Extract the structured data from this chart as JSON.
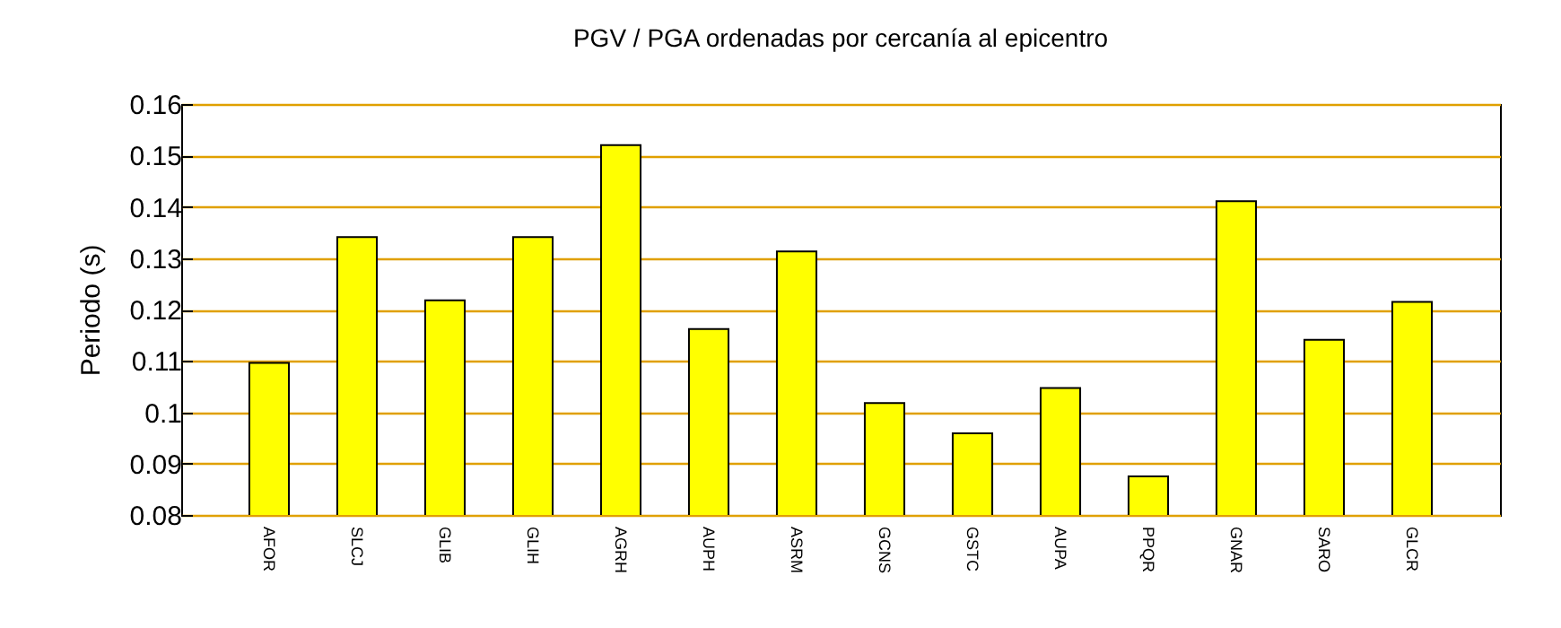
{
  "chart_data": {
    "type": "bar",
    "title": "PGV / PGA ordenadas por cercanía al epicentro",
    "ylabel": "Periodo (s)",
    "categories": [
      "AFOR",
      "SLCJ",
      "GLIB",
      "GLIH",
      "AGRH",
      "AUPH",
      "ASRM",
      "GCNS",
      "GSTC",
      "AUPA",
      "PPQR",
      "GNAR",
      "SARO",
      "GLCR"
    ],
    "values": [
      0.1096,
      0.1341,
      0.1218,
      0.1341,
      0.152,
      0.1162,
      0.1313,
      0.1018,
      0.0959,
      0.1047,
      0.0875,
      0.1411,
      0.1141,
      0.1215
    ],
    "color": "#ffff00",
    "ylim": [
      0.08,
      0.16
    ],
    "yticks": [
      0.08,
      0.09,
      0.1,
      0.11,
      0.12,
      0.13,
      0.14,
      0.15,
      0.16
    ],
    "grid": "y"
  }
}
